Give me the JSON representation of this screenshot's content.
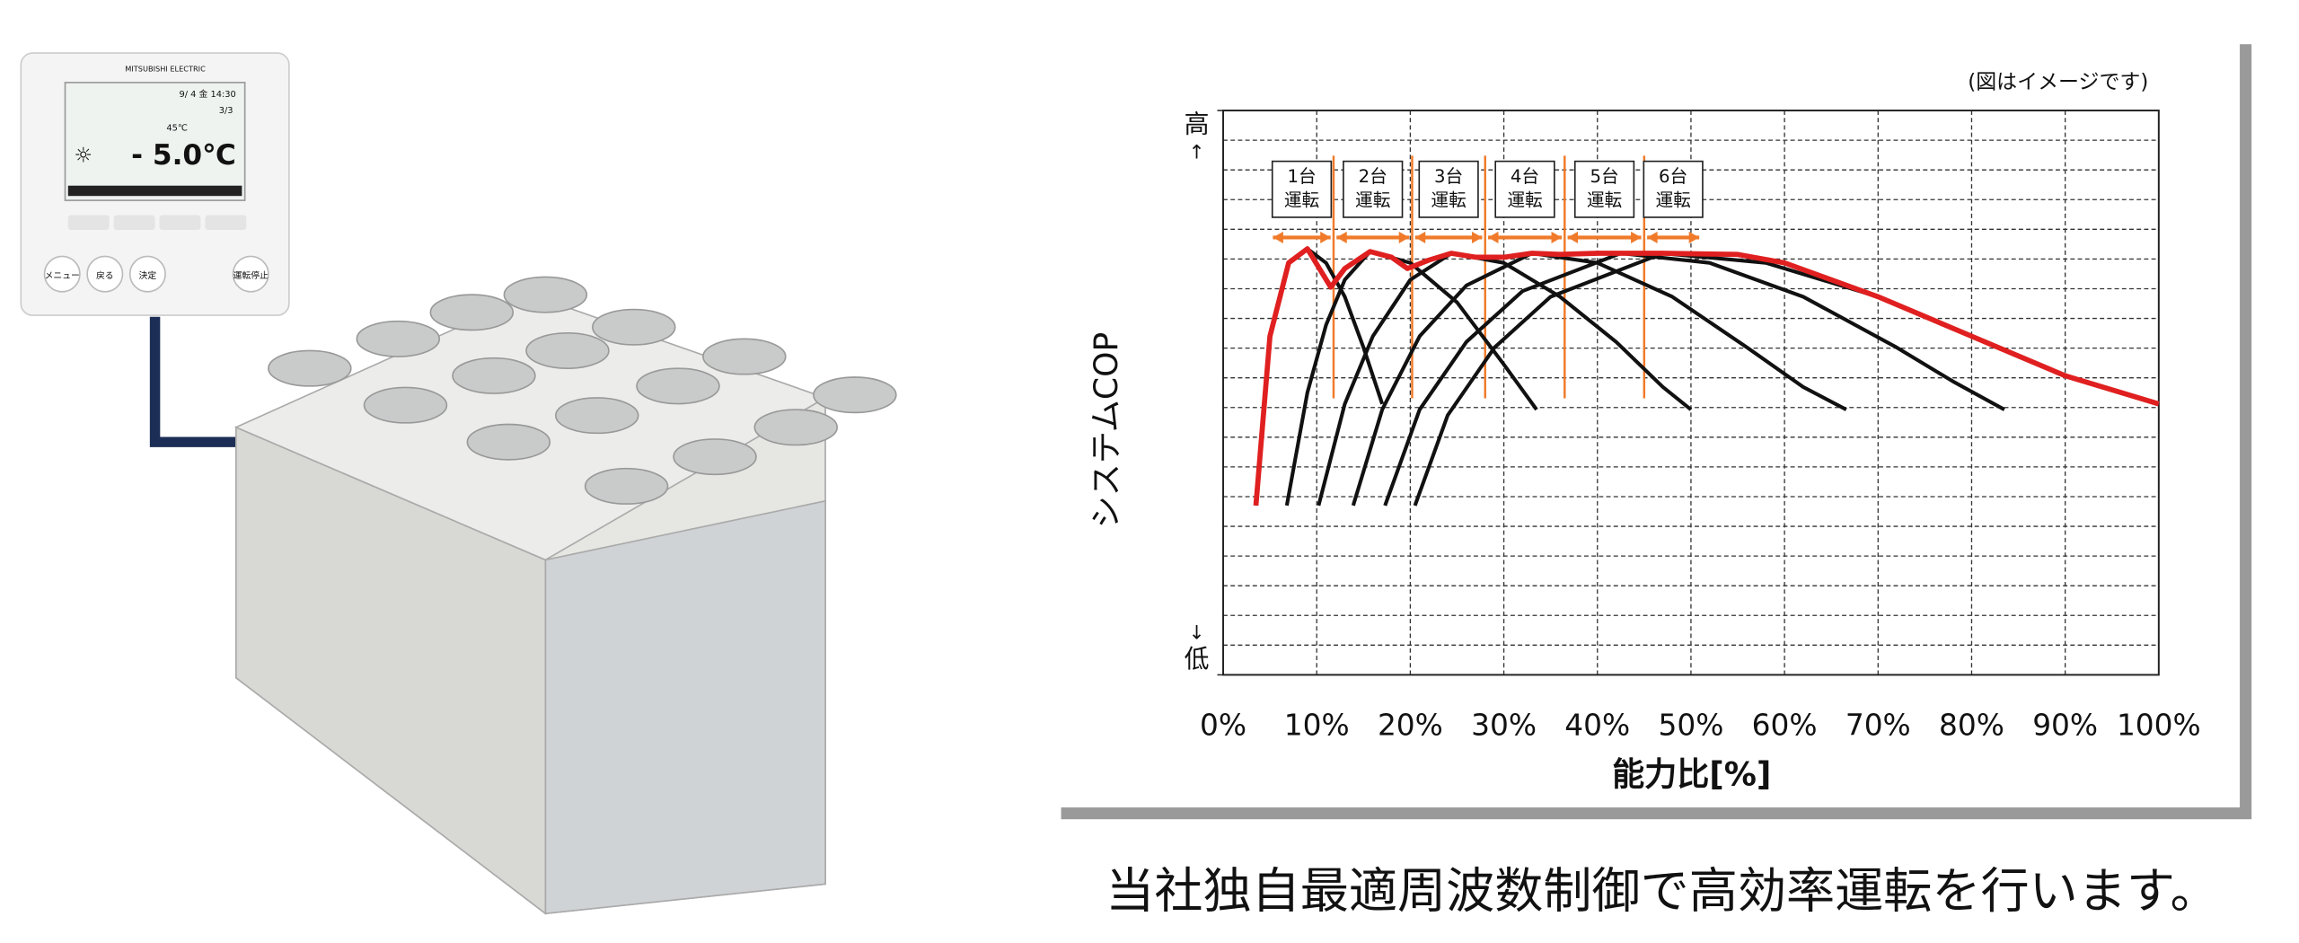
{
  "remote": {
    "brand": "MITSUBISHI ELECTRIC",
    "datetime": "9/ 4 金  14:30",
    "page": "3/3",
    "set_temp": "45℃",
    "reading": "- 5.0℃",
    "buttons": [
      "メニュー",
      "戻る",
      "決定",
      "運転停止"
    ]
  },
  "chart_data": {
    "type": "line",
    "note": "(図はイメージです)",
    "x_label": "能力比[%]",
    "y_label": "システムCOP",
    "xlim": [
      0,
      100
    ],
    "xticks": [
      {
        "value": 0,
        "label": "0%"
      },
      {
        "value": 10,
        "label": "10%"
      },
      {
        "value": 20,
        "label": "20%"
      },
      {
        "value": 30,
        "label": "30%"
      },
      {
        "value": 40,
        "label": "40%"
      },
      {
        "value": 50,
        "label": "50%"
      },
      {
        "value": 60,
        "label": "60%"
      },
      {
        "value": 70,
        "label": "70%"
      },
      {
        "value": 80,
        "label": "80%"
      },
      {
        "value": 90,
        "label": "90%"
      },
      {
        "value": 100,
        "label": "100%"
      }
    ],
    "ylim": [
      0,
      100
    ],
    "yticks": [
      {
        "value": 100,
        "label": "高"
      },
      {
        "value": 0,
        "label": "低"
      }
    ],
    "grid": true,
    "stages": [
      {
        "unit": "1台",
        "text": "運転"
      },
      {
        "unit": "2台",
        "text": "運転"
      },
      {
        "unit": "3台",
        "text": "運転"
      },
      {
        "unit": "4台",
        "text": "運転"
      },
      {
        "unit": "5台",
        "text": "運転"
      },
      {
        "unit": "6台",
        "text": "運転"
      }
    ],
    "stage_edges": [
      5,
      11.8,
      20.2,
      28,
      36.5,
      45,
      51.2
    ],
    "stage_color": "#f07a2a",
    "series": [
      {
        "color": "#111111",
        "x": [
          3.5,
          5,
          7,
          9,
          11,
          13,
          15,
          17
        ],
        "values": [
          30,
          60,
          73,
          75.5,
          73,
          67,
          58,
          48
        ]
      },
      {
        "color": "#111111",
        "x": [
          6.8,
          9,
          11,
          13,
          15.7,
          20,
          25,
          30,
          33.5
        ],
        "values": [
          30,
          50,
          62,
          70,
          75,
          73,
          66,
          55,
          47
        ]
      },
      {
        "color": "#111111",
        "x": [
          10.2,
          13,
          16,
          20,
          24.4,
          30,
          36,
          42,
          47,
          50
        ],
        "values": [
          30,
          48,
          60,
          70,
          74.7,
          73,
          67,
          59,
          51,
          47
        ]
      },
      {
        "color": "#111111",
        "x": [
          13.9,
          17,
          21,
          26,
          33,
          40,
          48,
          56,
          62,
          66.6
        ],
        "values": [
          30,
          47,
          60,
          69,
          74.7,
          73,
          67,
          58,
          51,
          47
        ]
      },
      {
        "color": "#111111",
        "x": [
          17.3,
          21,
          26,
          32,
          42.5,
          52,
          62,
          72,
          78,
          83.5
        ],
        "values": [
          30,
          47,
          59,
          68,
          74.7,
          73,
          67,
          58,
          52,
          47
        ]
      },
      {
        "color": "#111111",
        "x": [
          20.5,
          24,
          29,
          35,
          47,
          58,
          70,
          80,
          90,
          100
        ],
        "values": [
          30,
          46,
          58,
          67,
          74.7,
          73,
          67,
          60,
          53,
          48
        ]
      },
      {
        "color": "#e02020",
        "x": [
          3.5,
          5,
          7,
          9,
          11.5,
          13,
          15.7,
          18,
          19.7,
          22,
          24.4,
          27,
          30,
          33,
          36,
          40,
          47,
          55,
          60,
          70,
          80,
          90,
          100
        ],
        "values": [
          30,
          60,
          73,
          75.5,
          68.7,
          72,
          75,
          74,
          72,
          73.5,
          74.7,
          74,
          74,
          74.7,
          74.5,
          74.7,
          74.7,
          74.5,
          73,
          67,
          60,
          53,
          48
        ]
      }
    ],
    "caption": "当社独自最適周波数制御で高効率運転を行います。"
  }
}
